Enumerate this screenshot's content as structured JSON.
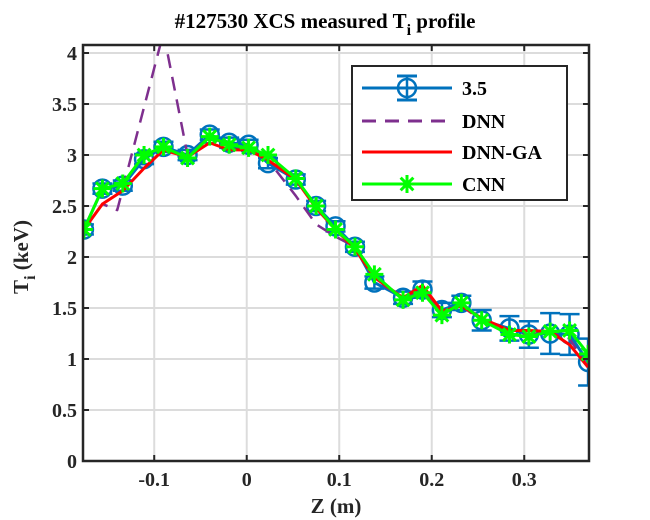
{
  "chart_data": {
    "type": "line",
    "title": "#127530 XCS measured T",
    "title_subscript": "i",
    "title_suffix": " profile",
    "xlabel": "Z (m)",
    "ylabel": "T",
    "ylabel_subscript": "i",
    "ylabel_suffix": " (keV)",
    "xlim": [
      -0.177,
      0.37
    ],
    "ylim": [
      0,
      4
    ],
    "xticks": [
      -0.1,
      0,
      0.1,
      0.2,
      0.3
    ],
    "xtick_labels": [
      "-0.1",
      "0",
      "0.1",
      "0.2",
      "0.3"
    ],
    "yticks": [
      0,
      0.5,
      1,
      1.5,
      2,
      2.5,
      3,
      3.5,
      4
    ],
    "ytick_labels": [
      "0",
      "0.5",
      "1",
      "1.5",
      "2",
      "2.5",
      "3",
      "3.5",
      "4"
    ],
    "grid": true,
    "legend_position": "top-right",
    "series": [
      {
        "name": "3.5",
        "style": "errorbar-circle",
        "color": "#0072BD",
        "x": [
          -0.176,
          -0.156,
          -0.134,
          -0.111,
          -0.09,
          -0.064,
          -0.04,
          -0.019,
          0.002,
          0.023,
          0.053,
          0.075,
          0.096,
          0.117,
          0.138,
          0.169,
          0.19,
          0.211,
          0.232,
          0.254,
          0.284,
          0.305,
          0.328,
          0.349,
          0.369
        ],
        "y": [
          2.27,
          2.67,
          2.7,
          2.96,
          3.08,
          3.0,
          3.2,
          3.12,
          3.1,
          2.92,
          2.76,
          2.5,
          2.3,
          2.1,
          1.75,
          1.6,
          1.68,
          1.48,
          1.55,
          1.38,
          1.3,
          1.24,
          1.25,
          1.24,
          0.97
        ],
        "err": [
          0.05,
          0.05,
          0.05,
          0.05,
          0.05,
          0.05,
          0.05,
          0.05,
          0.05,
          0.05,
          0.05,
          0.05,
          0.05,
          0.05,
          0.06,
          0.06,
          0.08,
          0.07,
          0.07,
          0.1,
          0.12,
          0.13,
          0.2,
          0.2,
          0.23
        ]
      },
      {
        "name": "DNN",
        "style": "dashed",
        "color": "#7E2F8E",
        "x": [
          -0.176,
          -0.156,
          -0.14,
          -0.09,
          -0.064,
          -0.04,
          -0.019,
          0.002,
          0.023,
          0.053,
          0.075,
          0.096,
          0.117,
          0.138,
          0.169,
          0.19,
          0.211,
          0.232,
          0.254,
          0.284,
          0.305,
          0.328,
          0.349,
          0.369
        ],
        "y": [
          2.27,
          2.52,
          2.46,
          4.2,
          3.0,
          3.17,
          3.1,
          3.06,
          2.95,
          2.6,
          2.32,
          2.2,
          2.1,
          1.78,
          1.6,
          1.66,
          1.45,
          1.52,
          1.38,
          1.28,
          1.24,
          1.26,
          1.2,
          0.92
        ]
      },
      {
        "name": "DNN-GA",
        "style": "solid",
        "color": "#FF0000",
        "x": [
          -0.176,
          -0.156,
          -0.134,
          -0.111,
          -0.09,
          -0.064,
          -0.04,
          -0.019,
          0.002,
          0.023,
          0.053,
          0.075,
          0.096,
          0.117,
          0.138,
          0.169,
          0.19,
          0.211,
          0.232,
          0.254,
          0.284,
          0.305,
          0.328,
          0.349,
          0.369
        ],
        "y": [
          2.27,
          2.52,
          2.65,
          2.87,
          3.05,
          2.98,
          3.12,
          3.05,
          3.05,
          2.95,
          2.76,
          2.48,
          2.27,
          2.08,
          1.8,
          1.6,
          1.72,
          1.47,
          1.52,
          1.4,
          1.28,
          1.28,
          1.27,
          1.14,
          0.92
        ]
      },
      {
        "name": "CNN",
        "style": "star",
        "color": "#00FF00",
        "x": [
          -0.176,
          -0.156,
          -0.134,
          -0.111,
          -0.09,
          -0.064,
          -0.04,
          -0.019,
          0.002,
          0.023,
          0.053,
          0.075,
          0.096,
          0.117,
          0.138,
          0.169,
          0.19,
          0.211,
          0.232,
          0.254,
          0.284,
          0.305,
          0.328,
          0.349,
          0.369
        ],
        "y": [
          2.27,
          2.67,
          2.72,
          3.0,
          3.08,
          2.97,
          3.18,
          3.1,
          3.07,
          3.0,
          2.77,
          2.5,
          2.27,
          2.1,
          1.83,
          1.58,
          1.65,
          1.43,
          1.55,
          1.38,
          1.24,
          1.22,
          1.27,
          1.28,
          1.05
        ]
      }
    ]
  }
}
